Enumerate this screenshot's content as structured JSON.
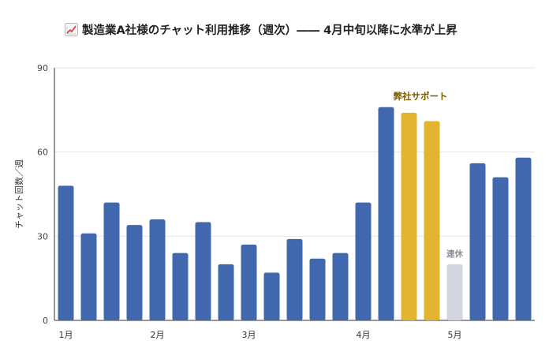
{
  "icon": "chart-increasing-icon",
  "colors": {
    "normal": "#4168ae",
    "highlight": "#e3b42f",
    "holiday": "#d3d6de",
    "grid": "#e6e6e6",
    "axis": "#333333",
    "highlight_label": "#7a5c00",
    "holiday_label": "#8a8f99"
  },
  "chart_data": {
    "type": "bar",
    "title": "製造業A社様のチャット利用推移（週次）―― 4月中旬以降に水準が上昇",
    "xlabel": "",
    "ylabel": "チャット回数／週",
    "ylim": [
      0,
      90
    ],
    "yticks": [
      0,
      30,
      60,
      90
    ],
    "grid": true,
    "values": [
      48,
      31,
      42,
      34,
      36,
      24,
      35,
      20,
      27,
      17,
      29,
      22,
      24,
      42,
      76,
      74,
      71,
      20,
      56,
      51,
      58
    ],
    "bar_kinds": [
      "normal",
      "normal",
      "normal",
      "normal",
      "normal",
      "normal",
      "normal",
      "normal",
      "normal",
      "normal",
      "normal",
      "normal",
      "normal",
      "normal",
      "normal",
      "highlight",
      "highlight",
      "holiday",
      "normal",
      "normal",
      "normal"
    ],
    "month_labels": [
      {
        "index": 0,
        "label": "1月"
      },
      {
        "index": 4,
        "label": "2月"
      },
      {
        "index": 8,
        "label": "3月"
      },
      {
        "index": 13,
        "label": "4月"
      },
      {
        "index": 17,
        "label": "5月"
      }
    ],
    "annotations": [
      {
        "text": "弊社サポート",
        "bars": [
          15,
          16
        ],
        "kind": "highlight"
      },
      {
        "text": "連休",
        "bars": [
          17
        ],
        "kind": "holiday"
      }
    ]
  }
}
